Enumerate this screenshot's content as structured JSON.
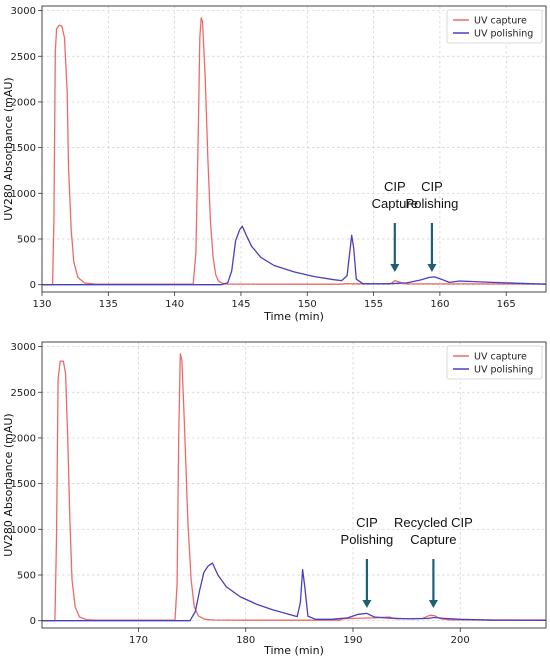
{
  "chart_data": [
    {
      "type": "line",
      "title": "",
      "xlabel": "Time (min)",
      "ylabel": "UV280 Absorbance (mAU)",
      "xlim": [
        130,
        168
      ],
      "ylim": [
        -80,
        3050
      ],
      "xticks": [
        130,
        135,
        140,
        145,
        150,
        155,
        160,
        165
      ],
      "yticks": [
        0,
        500,
        1000,
        1500,
        2000,
        2500,
        3000
      ],
      "grid": true,
      "legend_position": "top-right",
      "colors": {
        "UV capture": "#ee6a6a",
        "UV polishing": "#4a3fbf"
      },
      "series": [
        {
          "name": "UV capture",
          "x": [
            130,
            130.8,
            130.9,
            131.0,
            131.1,
            131.3,
            131.5,
            131.7,
            131.9,
            132.0,
            132.2,
            132.4,
            132.7,
            133.2,
            134,
            141.4,
            141.6,
            141.8,
            141.9,
            142.0,
            142.1,
            142.3,
            142.5,
            142.7,
            142.9,
            143.1,
            143.3,
            143.6,
            144,
            145,
            147,
            150,
            152.6,
            152.8,
            153.5,
            156.3,
            156.6,
            156.9,
            157.4,
            168
          ],
          "y": [
            0,
            0,
            700,
            2550,
            2800,
            2840,
            2830,
            2700,
            2100,
            1300,
            600,
            250,
            80,
            20,
            5,
            5,
            350,
            1800,
            2700,
            2920,
            2880,
            2300,
            1400,
            700,
            300,
            110,
            40,
            15,
            8,
            6,
            5,
            5,
            5,
            12,
            10,
            10,
            45,
            30,
            10,
            8
          ]
        },
        {
          "name": "UV polishing",
          "x": [
            130,
            143.5,
            144.0,
            144.3,
            144.6,
            144.9,
            145.1,
            145.4,
            145.8,
            146.5,
            147.5,
            149,
            150.5,
            152,
            152.6,
            153.0,
            153.2,
            153.35,
            153.5,
            153.7,
            154.2,
            156,
            157.5,
            158.5,
            159.2,
            159.6,
            160.2,
            160.7,
            161.5,
            163,
            165,
            168
          ],
          "y": [
            0,
            0,
            20,
            150,
            480,
            600,
            640,
            540,
            420,
            300,
            210,
            140,
            90,
            55,
            45,
            100,
            350,
            540,
            400,
            60,
            10,
            10,
            20,
            50,
            80,
            85,
            55,
            25,
            40,
            30,
            20,
            5
          ]
        }
      ],
      "annotations": [
        {
          "text_lines": [
            "CIP",
            "Capture"
          ],
          "x": 156.6
        },
        {
          "text_lines": [
            "CIP",
            "Polishing"
          ],
          "x": 159.4
        }
      ]
    },
    {
      "type": "line",
      "title": "",
      "xlabel": "Time (min)",
      "ylabel": "UV280 Absorbance (mAU)",
      "xlim": [
        161,
        208
      ],
      "ylim": [
        -80,
        3050
      ],
      "xticks": [
        170,
        180,
        190,
        200
      ],
      "yticks": [
        0,
        500,
        1000,
        1500,
        2000,
        2500,
        3000
      ],
      "grid": true,
      "legend_position": "top-right",
      "colors": {
        "UV capture": "#ee6a6a",
        "UV polishing": "#4a3fbf"
      },
      "series": [
        {
          "name": "UV capture",
          "x": [
            161,
            162.2,
            162.35,
            162.5,
            162.7,
            163.0,
            163.2,
            163.4,
            163.6,
            163.8,
            164.1,
            164.5,
            165.2,
            166,
            173.4,
            173.6,
            173.75,
            173.9,
            174.05,
            174.3,
            174.6,
            174.9,
            175.2,
            175.6,
            176.2,
            177,
            180,
            188.8,
            189.0,
            190,
            192,
            193.4,
            194,
            196.5,
            197.2,
            197.6,
            198.2,
            199,
            208
          ],
          "y": [
            0,
            0,
            900,
            2650,
            2840,
            2840,
            2700,
            2000,
            1100,
            450,
            150,
            40,
            10,
            5,
            5,
            400,
            2000,
            2920,
            2850,
            2100,
            1100,
            450,
            150,
            50,
            15,
            8,
            5,
            5,
            20,
            25,
            30,
            40,
            20,
            25,
            60,
            55,
            20,
            10,
            8
          ]
        },
        {
          "name": "UV polishing",
          "x": [
            161,
            174.8,
            175.3,
            175.7,
            176.1,
            176.5,
            176.9,
            177.4,
            178.2,
            179.5,
            181,
            182.5,
            184,
            184.8,
            185.1,
            185.3,
            185.5,
            185.8,
            186.5,
            188,
            189.5,
            190.5,
            191.3,
            192,
            193,
            194,
            195.5,
            197,
            197.6,
            198.5,
            200,
            203,
            208
          ],
          "y": [
            0,
            0,
            100,
            330,
            530,
            600,
            630,
            500,
            370,
            260,
            180,
            120,
            70,
            45,
            200,
            560,
            380,
            50,
            15,
            15,
            30,
            70,
            80,
            40,
            30,
            25,
            20,
            25,
            35,
            25,
            15,
            5,
            3
          ]
        }
      ],
      "annotations": [
        {
          "text_lines": [
            "CIP",
            "Polishing"
          ],
          "x": 191.3
        },
        {
          "text_lines": [
            "Recycled CIP",
            "Capture"
          ],
          "x": 197.5
        }
      ]
    }
  ]
}
